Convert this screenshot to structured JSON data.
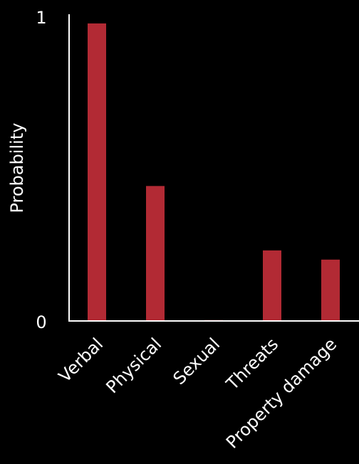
{
  "chart_data": {
    "type": "bar",
    "title": "",
    "xlabel": "",
    "ylabel": "Probability",
    "ylim": [
      0,
      1
    ],
    "yticks": [
      "0",
      "1"
    ],
    "categories": [
      "Verbal",
      "Physical",
      "Sexual",
      "Threats",
      "Property damage"
    ],
    "values": [
      0.97,
      0.44,
      0.003,
      0.23,
      0.2
    ],
    "bar_color": "#b22a34",
    "axis_color": "#ffffff",
    "background": "#000000",
    "grid": false,
    "legend": "none"
  }
}
